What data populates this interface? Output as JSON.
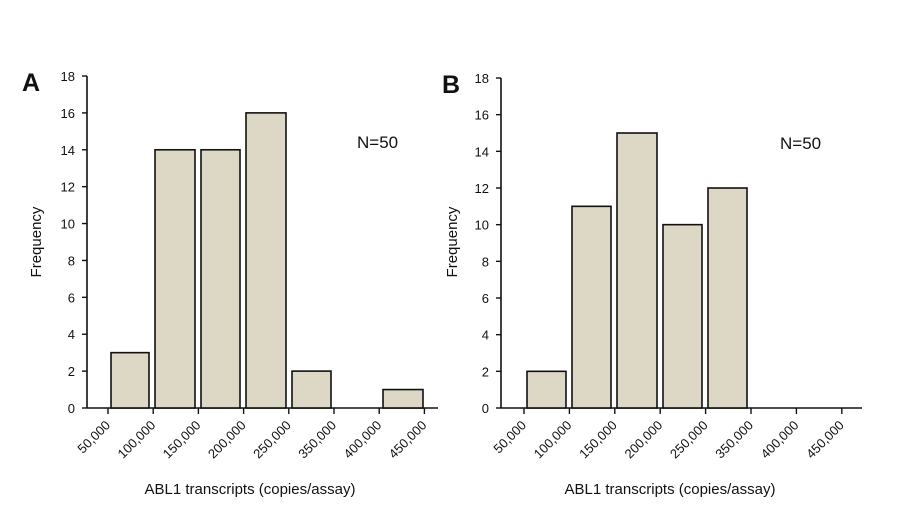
{
  "chart_data": [
    {
      "type": "bar",
      "panel_label": "A",
      "x_tick_labels": [
        "50,000",
        "100,000",
        "150,000",
        "200,000",
        "250,000",
        "350,000",
        "400,000",
        "450,000"
      ],
      "bars": [
        {
          "bin": "50,000–100,000",
          "value": 3
        },
        {
          "bin": "100,000–150,000",
          "value": 14
        },
        {
          "bin": "150,000–200,000",
          "value": 14
        },
        {
          "bin": "200,000–250,000",
          "value": 16
        },
        {
          "bin": "250,000–350,000",
          "value": 2
        },
        {
          "bin": "350,000–400,000",
          "value": 0
        },
        {
          "bin": "400,000–450,000",
          "value": 1
        }
      ],
      "annotation": "N=50",
      "xlabel": "ABL1 transcripts (copies/assay)",
      "ylabel": "Frequency",
      "ylim": [
        0,
        18
      ],
      "yticks": [
        0,
        2,
        4,
        6,
        8,
        10,
        12,
        14,
        16,
        18
      ],
      "grid": false
    },
    {
      "type": "bar",
      "panel_label": "B",
      "x_tick_labels": [
        "50,000",
        "100,000",
        "150,000",
        "200,000",
        "250,000",
        "350,000",
        "400,000",
        "450,000"
      ],
      "bars": [
        {
          "bin": "50,000–100,000",
          "value": 2
        },
        {
          "bin": "100,000–150,000",
          "value": 11
        },
        {
          "bin": "150,000–200,000",
          "value": 15
        },
        {
          "bin": "200,000–250,000",
          "value": 10
        },
        {
          "bin": "250,000–350,000",
          "value": 12
        },
        {
          "bin": "350,000–400,000",
          "value": 0
        },
        {
          "bin": "400,000–450,000",
          "value": 0
        }
      ],
      "annotation": "N=50",
      "xlabel": "ABL1 transcripts (copies/assay)",
      "ylabel": "Frequency",
      "ylim": [
        0,
        18
      ],
      "yticks": [
        0,
        2,
        4,
        6,
        8,
        10,
        12,
        14,
        16,
        18
      ],
      "grid": false
    }
  ]
}
